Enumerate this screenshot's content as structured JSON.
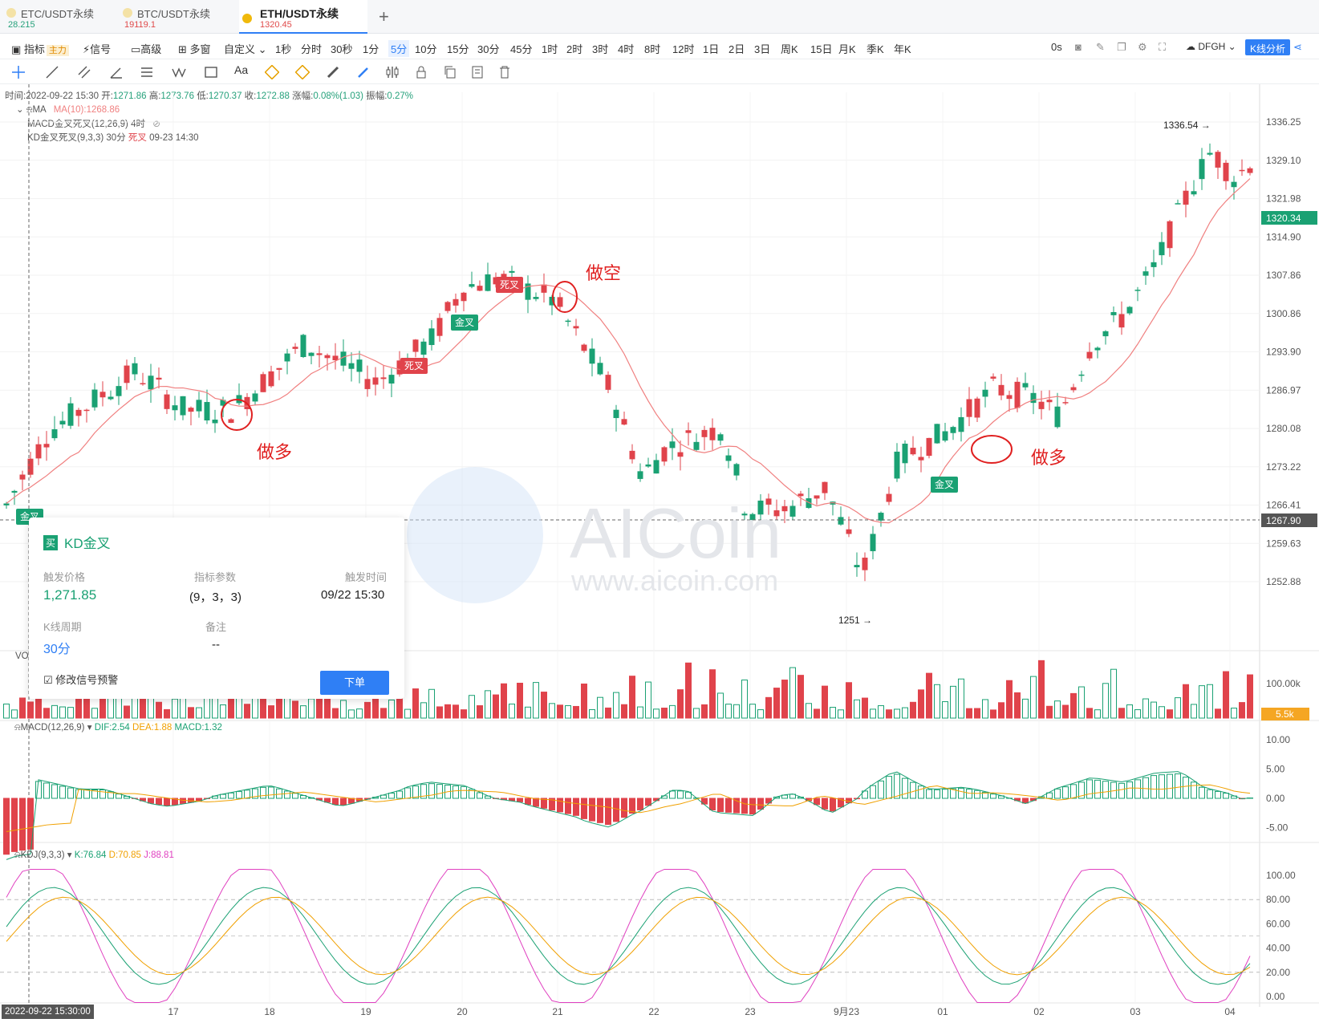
{
  "tabs": [
    {
      "name": "ETC/USDT永续",
      "price": "28.215",
      "price_color": "#26a17b",
      "active": false
    },
    {
      "name": "BTC/USDT永续",
      "price": "19119.1",
      "price_color": "#e04a4a",
      "active": false
    },
    {
      "name": "ETH/USDT永续",
      "price": "1320.45",
      "price_color": "#e04a4a",
      "active": true
    }
  ],
  "toolbar": {
    "indicator": "指标",
    "indicator_tag": "主力",
    "signal": "信号",
    "advanced": "高级",
    "multi_window": "多窗",
    "custom": "自定义",
    "intervals": [
      "1秒",
      "分时",
      "30秒",
      "1分",
      "5分",
      "10分",
      "15分",
      "30分",
      "45分",
      "1时",
      "2时",
      "3时",
      "4时",
      "8时",
      "12时",
      "1日",
      "2日",
      "3日",
      "周K",
      "15日",
      "月K",
      "季K",
      "年K"
    ],
    "selected_interval": "5分",
    "countdown": "0s",
    "theme": "DFGH",
    "k_analysis": "K线分析"
  },
  "chart_info": {
    "time_label": "时间:",
    "time": "2022-09-22 15:30",
    "open_label": "开:",
    "open": "1271.86",
    "high_label": "高:",
    "high": "1273.76",
    "low_label": "低:",
    "low": "1270.37",
    "close_label": "收:",
    "close": "1272.88",
    "change_label": "涨幅:",
    "change": "0.08%(1.03)",
    "amp_label": "振幅:",
    "amp": "0.27%",
    "ma_label": "MA",
    "ma10": "MA(10):1268.86",
    "macd_signal": "MACD金叉死叉(12,26,9) 4时",
    "kd_signal_prefix": "KD金叉死叉(9,3,3) 30分",
    "kd_signal_state": "死叉",
    "kd_signal_time": "09-23 14:30"
  },
  "price_axis": [
    "1336.25",
    "1329.10",
    "1321.98",
    "1314.90",
    "1307.86",
    "1300.86",
    "1293.90",
    "1286.97",
    "1280.08",
    "1273.22",
    "1266.41",
    "1259.63",
    "1252.88"
  ],
  "price_tags": {
    "current": "1320.34",
    "cursor": "1267.90",
    "high_mark": "1336.54 →",
    "low_mark": "1251 →"
  },
  "annotations": {
    "long1": "做多",
    "short": "做空",
    "long2": "做多",
    "golden": "金叉",
    "death": "死叉"
  },
  "signal_card": {
    "buy": "买",
    "title": "KD金叉",
    "trigger_price_label": "触发价格",
    "trigger_price": "1,271.85",
    "params_label": "指标参数",
    "params": "(9，3，3)",
    "trigger_time_label": "触发时间",
    "trigger_time": "09/22 15:30",
    "period_label": "K线周期",
    "period": "30分",
    "note_label": "备注",
    "note": "--",
    "edit": "修改信号预警",
    "order": "下单"
  },
  "volume": {
    "label": "VO",
    "axis_top": "100.00k",
    "current": "5.5k"
  },
  "macd": {
    "label": "MACD(12,26,9)",
    "dif": "DIF:2.54",
    "dea": "DEA:1.88",
    "macd": "MACD:1.32",
    "axis": [
      "10.00",
      "5.00",
      "0.00",
      "-5.00"
    ]
  },
  "kdj": {
    "label": "KDJ(9,3,3)",
    "k": "K:76.84",
    "d": "D:70.85",
    "j": "J:88.81",
    "axis": [
      "100.00",
      "80.00",
      "60.00",
      "40.00",
      "20.00",
      "0.00"
    ]
  },
  "x_axis": [
    "17",
    "18",
    "19",
    "20",
    "21",
    "22",
    "23",
    "9月23",
    "01",
    "02",
    "03",
    "04"
  ],
  "crosshair_date": "2022-09-22 15:30:00",
  "watermark": {
    "brand": "AICoin",
    "url": "www.aicoin.com"
  },
  "colors": {
    "up": "#1aa173",
    "down": "#e0434b",
    "accent": "#2f7ff5",
    "ma": "#f08080"
  }
}
